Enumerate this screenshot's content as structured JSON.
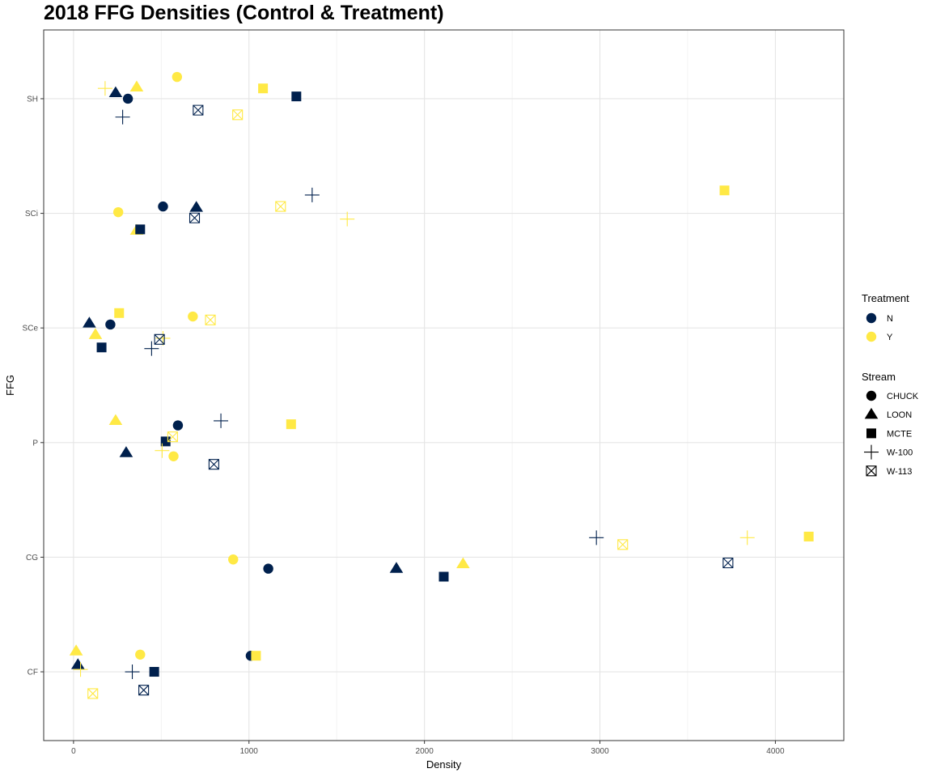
{
  "chart_data": {
    "type": "scatter",
    "title": "2018 FFG Densities (Control & Treatment)",
    "xlabel": "Density",
    "ylabel": "FFG",
    "xlim": [
      -170,
      4390
    ],
    "x_ticks": [
      0,
      1000,
      2000,
      3000,
      4000
    ],
    "categories": [
      "CF",
      "CG",
      "P",
      "SCe",
      "SCi",
      "SH"
    ],
    "grid": true,
    "legend_position": "right",
    "colors": {
      "N": "#00204d",
      "Y": "#ffe945"
    },
    "legends": {
      "treatment": {
        "title": "Treatment",
        "entries": [
          "N",
          "Y"
        ]
      },
      "stream": {
        "title": "Stream",
        "entries": [
          "CHUCK",
          "LOON",
          "MCTE",
          "W-100",
          "W-113"
        ]
      }
    },
    "stream_shapes": {
      "CHUCK": "circle",
      "LOON": "triangle",
      "MCTE": "square",
      "W-100": "plus",
      "W-113": "boxcross"
    },
    "points": [
      {
        "x": 590,
        "y": "SH",
        "jitter": 0.19,
        "stream": "CHUCK",
        "treatment": "Y"
      },
      {
        "x": 310,
        "y": "SH",
        "jitter": 0.0,
        "stream": "CHUCK",
        "treatment": "N"
      },
      {
        "x": 240,
        "y": "SH",
        "jitter": 0.05,
        "stream": "LOON",
        "treatment": "N"
      },
      {
        "x": 360,
        "y": "SH",
        "jitter": 0.1,
        "stream": "LOON",
        "treatment": "Y"
      },
      {
        "x": 1270,
        "y": "SH",
        "jitter": 0.02,
        "stream": "MCTE",
        "treatment": "N"
      },
      {
        "x": 1080,
        "y": "SH",
        "jitter": 0.09,
        "stream": "MCTE",
        "treatment": "Y"
      },
      {
        "x": 180,
        "y": "SH",
        "jitter": 0.09,
        "stream": "W-100",
        "treatment": "Y"
      },
      {
        "x": 280,
        "y": "SH",
        "jitter": -0.16,
        "stream": "W-100",
        "treatment": "N"
      },
      {
        "x": 710,
        "y": "SH",
        "jitter": -0.1,
        "stream": "W-113",
        "treatment": "N"
      },
      {
        "x": 935,
        "y": "SH",
        "jitter": -0.14,
        "stream": "W-113",
        "treatment": "Y"
      },
      {
        "x": 255,
        "y": "SCi",
        "jitter": 0.01,
        "stream": "CHUCK",
        "treatment": "Y"
      },
      {
        "x": 510,
        "y": "SCi",
        "jitter": 0.06,
        "stream": "CHUCK",
        "treatment": "N"
      },
      {
        "x": 700,
        "y": "SCi",
        "jitter": 0.05,
        "stream": "LOON",
        "treatment": "N"
      },
      {
        "x": 360,
        "y": "SCi",
        "jitter": -0.15,
        "stream": "LOON",
        "treatment": "Y"
      },
      {
        "x": 380,
        "y": "SCi",
        "jitter": -0.14,
        "stream": "MCTE",
        "treatment": "N"
      },
      {
        "x": 3710,
        "y": "SCi",
        "jitter": 0.2,
        "stream": "MCTE",
        "treatment": "Y"
      },
      {
        "x": 1360,
        "y": "SCi",
        "jitter": 0.16,
        "stream": "W-100",
        "treatment": "N"
      },
      {
        "x": 1560,
        "y": "SCi",
        "jitter": -0.05,
        "stream": "W-100",
        "treatment": "Y"
      },
      {
        "x": 690,
        "y": "SCi",
        "jitter": -0.04,
        "stream": "W-113",
        "treatment": "N"
      },
      {
        "x": 1180,
        "y": "SCi",
        "jitter": 0.06,
        "stream": "W-113",
        "treatment": "Y"
      },
      {
        "x": 210,
        "y": "SCe",
        "jitter": 0.03,
        "stream": "CHUCK",
        "treatment": "N"
      },
      {
        "x": 680,
        "y": "SCe",
        "jitter": 0.1,
        "stream": "CHUCK",
        "treatment": "Y"
      },
      {
        "x": 90,
        "y": "SCe",
        "jitter": 0.04,
        "stream": "LOON",
        "treatment": "N"
      },
      {
        "x": 125,
        "y": "SCe",
        "jitter": -0.06,
        "stream": "LOON",
        "treatment": "Y"
      },
      {
        "x": 160,
        "y": "SCe",
        "jitter": -0.17,
        "stream": "MCTE",
        "treatment": "N"
      },
      {
        "x": 260,
        "y": "SCe",
        "jitter": 0.13,
        "stream": "MCTE",
        "treatment": "Y"
      },
      {
        "x": 445,
        "y": "SCe",
        "jitter": -0.18,
        "stream": "W-100",
        "treatment": "N"
      },
      {
        "x": 510,
        "y": "SCe",
        "jitter": -0.09,
        "stream": "W-100",
        "treatment": "Y"
      },
      {
        "x": 490,
        "y": "SCe",
        "jitter": -0.1,
        "stream": "W-113",
        "treatment": "N"
      },
      {
        "x": 780,
        "y": "SCe",
        "jitter": 0.07,
        "stream": "W-113",
        "treatment": "Y"
      },
      {
        "x": 595,
        "y": "P",
        "jitter": 0.15,
        "stream": "CHUCK",
        "treatment": "N"
      },
      {
        "x": 570,
        "y": "P",
        "jitter": -0.12,
        "stream": "CHUCK",
        "treatment": "Y"
      },
      {
        "x": 300,
        "y": "P",
        "jitter": -0.09,
        "stream": "LOON",
        "treatment": "N"
      },
      {
        "x": 240,
        "y": "P",
        "jitter": 0.19,
        "stream": "LOON",
        "treatment": "Y"
      },
      {
        "x": 525,
        "y": "P",
        "jitter": 0.01,
        "stream": "MCTE",
        "treatment": "N"
      },
      {
        "x": 1240,
        "y": "P",
        "jitter": 0.16,
        "stream": "MCTE",
        "treatment": "Y"
      },
      {
        "x": 840,
        "y": "P",
        "jitter": 0.19,
        "stream": "W-100",
        "treatment": "N"
      },
      {
        "x": 505,
        "y": "P",
        "jitter": -0.07,
        "stream": "W-100",
        "treatment": "Y"
      },
      {
        "x": 800,
        "y": "P",
        "jitter": -0.19,
        "stream": "W-113",
        "treatment": "N"
      },
      {
        "x": 565,
        "y": "P",
        "jitter": 0.05,
        "stream": "W-113",
        "treatment": "Y"
      },
      {
        "x": 910,
        "y": "CG",
        "jitter": -0.02,
        "stream": "CHUCK",
        "treatment": "Y"
      },
      {
        "x": 1110,
        "y": "CG",
        "jitter": -0.1,
        "stream": "CHUCK",
        "treatment": "N"
      },
      {
        "x": 1840,
        "y": "CG",
        "jitter": -0.1,
        "stream": "LOON",
        "treatment": "N"
      },
      {
        "x": 2220,
        "y": "CG",
        "jitter": -0.06,
        "stream": "LOON",
        "treatment": "Y"
      },
      {
        "x": 2110,
        "y": "CG",
        "jitter": -0.17,
        "stream": "MCTE",
        "treatment": "N"
      },
      {
        "x": 4190,
        "y": "CG",
        "jitter": 0.18,
        "stream": "MCTE",
        "treatment": "Y"
      },
      {
        "x": 2980,
        "y": "CG",
        "jitter": 0.17,
        "stream": "W-100",
        "treatment": "N"
      },
      {
        "x": 3840,
        "y": "CG",
        "jitter": 0.17,
        "stream": "W-100",
        "treatment": "Y"
      },
      {
        "x": 3730,
        "y": "CG",
        "jitter": -0.05,
        "stream": "W-113",
        "treatment": "N"
      },
      {
        "x": 3130,
        "y": "CG",
        "jitter": 0.11,
        "stream": "W-113",
        "treatment": "Y"
      },
      {
        "x": 380,
        "y": "CF",
        "jitter": 0.15,
        "stream": "CHUCK",
        "treatment": "Y"
      },
      {
        "x": 1010,
        "y": "CF",
        "jitter": 0.14,
        "stream": "CHUCK",
        "treatment": "N"
      },
      {
        "x": 25,
        "y": "CF",
        "jitter": 0.06,
        "stream": "LOON",
        "treatment": "N"
      },
      {
        "x": 15,
        "y": "CF",
        "jitter": 0.18,
        "stream": "LOON",
        "treatment": "Y"
      },
      {
        "x": 460,
        "y": "CF",
        "jitter": 0.0,
        "stream": "MCTE",
        "treatment": "N"
      },
      {
        "x": 1040,
        "y": "CF",
        "jitter": 0.14,
        "stream": "MCTE",
        "treatment": "Y"
      },
      {
        "x": 335,
        "y": "CF",
        "jitter": 0.0,
        "stream": "W-100",
        "treatment": "N"
      },
      {
        "x": 40,
        "y": "CF",
        "jitter": 0.02,
        "stream": "W-100",
        "treatment": "Y"
      },
      {
        "x": 400,
        "y": "CF",
        "jitter": -0.16,
        "stream": "W-113",
        "treatment": "N"
      },
      {
        "x": 110,
        "y": "CF",
        "jitter": -0.19,
        "stream": "W-113",
        "treatment": "Y"
      }
    ]
  }
}
